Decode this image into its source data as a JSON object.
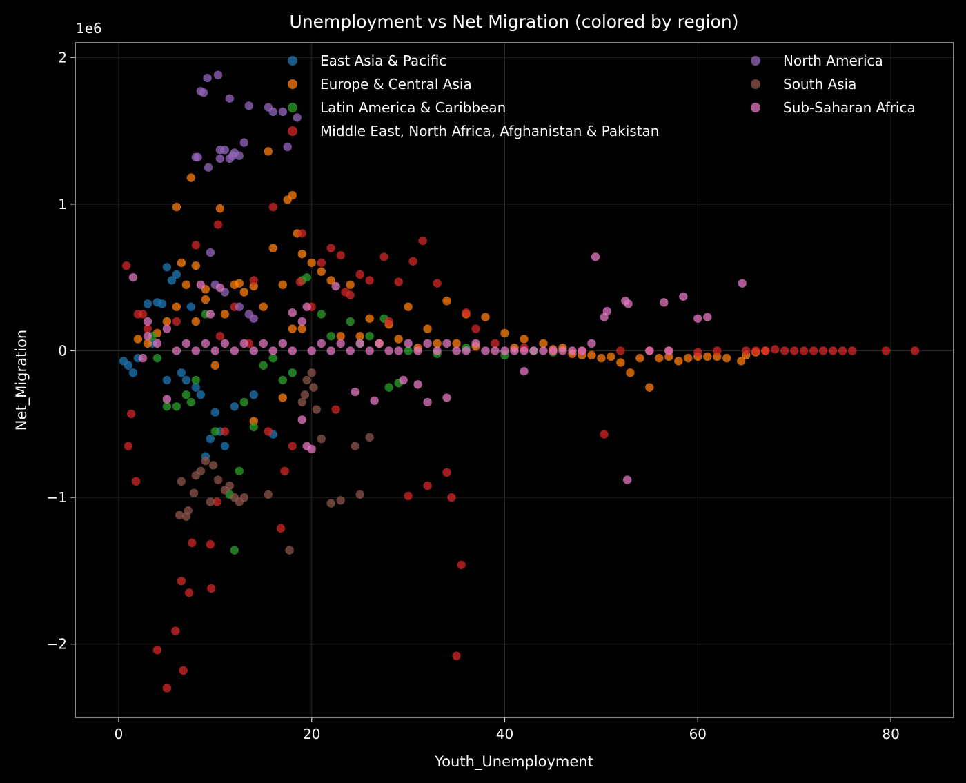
{
  "chart_data": {
    "type": "scatter",
    "title": "Unemployment vs Net Migration (colored by region)",
    "xlabel": "Youth_Unemployment",
    "ylabel": "Net_Migration",
    "y_scale_exponent_label": "1e6",
    "xlim": [
      -4.5,
      86.5
    ],
    "ylim": [
      -2.5,
      2.1
    ],
    "x_ticks": [
      0,
      20,
      40,
      60,
      80
    ],
    "x_tick_labels": [
      "0",
      "20",
      "40",
      "60",
      "80"
    ],
    "y_ticks": [
      -2,
      -1,
      0,
      1,
      2
    ],
    "y_tick_labels": [
      "−2",
      "−1",
      "0",
      "1",
      "2"
    ],
    "grid": true,
    "legend_location": "top",
    "series": [
      {
        "name": "East Asia & Pacific",
        "color": "#1f77b4",
        "x": [
          0.5,
          1,
          1.5,
          2,
          3,
          4,
          4.5,
          5,
          5.5,
          6,
          6.5,
          7,
          8,
          8.5,
          9,
          9.5,
          10,
          10.5,
          11,
          12,
          14,
          16,
          3.5,
          5,
          7.5
        ],
        "y": [
          -0.07,
          -0.1,
          -0.15,
          -0.05,
          0.32,
          0.33,
          0.32,
          0.57,
          0.48,
          0.52,
          -0.15,
          -0.2,
          -0.25,
          -0.3,
          -0.72,
          -0.6,
          -0.42,
          -0.55,
          -0.65,
          -0.38,
          -0.3,
          -0.57,
          0.05,
          -0.2,
          0.3
        ]
      },
      {
        "name": "Europe & Central Asia",
        "color": "#ff7f0e",
        "x": [
          6,
          6.5,
          7,
          7.5,
          8,
          9,
          10.5,
          12,
          12.5,
          14,
          15.5,
          16,
          17,
          17.5,
          18,
          18.5,
          19,
          20,
          21,
          22,
          24,
          26,
          28,
          30,
          32,
          34,
          36,
          38,
          40,
          42,
          44,
          46,
          48,
          50,
          52,
          53,
          55,
          56,
          58,
          60,
          61,
          63,
          64.5,
          65,
          6,
          8,
          10,
          14,
          17,
          19,
          23,
          35,
          2,
          4,
          3,
          5,
          9,
          11,
          13,
          15,
          18,
          25,
          27,
          29,
          31,
          33,
          37,
          41,
          45,
          47,
          49,
          51,
          54,
          57,
          59,
          62,
          66,
          67
        ],
        "y": [
          0.98,
          0.6,
          0.45,
          1.18,
          0.58,
          0.42,
          0.97,
          0.45,
          0.46,
          0.44,
          1.36,
          0.7,
          0.45,
          1.03,
          1.06,
          0.8,
          0.66,
          0.6,
          0.54,
          0.48,
          0.45,
          0.22,
          0.18,
          0.3,
          0.15,
          0.34,
          0.25,
          0.23,
          0.12,
          0.08,
          0.05,
          0.02,
          -0.03,
          -0.05,
          -0.08,
          -0.15,
          -0.25,
          -0.05,
          -0.07,
          -0.04,
          -0.04,
          -0.05,
          -0.07,
          -0.03,
          0.3,
          0.2,
          -0.1,
          -0.48,
          -0.32,
          0.15,
          0.1,
          0.05,
          0.08,
          0.12,
          0.05,
          0.2,
          0.35,
          0.25,
          0.4,
          0.3,
          0.15,
          0.1,
          0.05,
          0.08,
          0.02,
          0.05,
          0.03,
          0.02,
          0.01,
          -0.02,
          -0.03,
          -0.04,
          -0.05,
          -0.04,
          -0.05,
          -0.04,
          -0.01,
          0.0
        ]
      },
      {
        "name": "Latin America & Caribbean",
        "color": "#2ca02c",
        "x": [
          5,
          6,
          7,
          7.5,
          8,
          10,
          12,
          12.5,
          13,
          14,
          17,
          18,
          19,
          19.5,
          21,
          24,
          27.5,
          28,
          29,
          11.5,
          15,
          16,
          22,
          25,
          26,
          30,
          33,
          36,
          40,
          43,
          45,
          4,
          9,
          3.5
        ],
        "y": [
          -0.38,
          -0.38,
          -0.3,
          -0.35,
          -0.2,
          -0.55,
          -1.36,
          -0.82,
          -0.35,
          -0.52,
          -0.2,
          -0.15,
          0.48,
          0.5,
          0.25,
          0.2,
          0.22,
          -0.25,
          -0.22,
          -0.98,
          -0.1,
          -0.05,
          0.1,
          0.05,
          0.1,
          0.0,
          -0.02,
          0.02,
          -0.03,
          0.0,
          -0.01,
          -0.05,
          0.25,
          0.1
        ]
      },
      {
        "name": "Middle East, North Africa, Afghanistan & Pakistan",
        "color": "#d62728",
        "x": [
          0.8,
          1,
          1.3,
          1.8,
          2.5,
          4,
          5,
          5.9,
          6.5,
          6.7,
          7.3,
          7.6,
          9.5,
          9.6,
          10.2,
          10.3,
          11,
          15.5,
          16.8,
          17.2,
          18.8,
          19,
          22,
          23,
          25,
          27.5,
          29,
          30.5,
          32,
          34,
          35,
          35.5,
          36,
          50.3,
          55,
          60,
          65,
          68,
          70,
          72,
          74,
          76,
          79.5,
          82.5,
          31.5,
          33,
          22.5,
          16,
          14,
          12,
          8,
          6,
          3,
          2,
          20,
          24,
          26,
          28,
          37,
          39,
          42,
          45,
          48,
          52,
          57,
          62,
          66,
          67,
          69,
          71,
          73,
          75,
          10.5,
          13.5,
          18,
          21,
          23.5,
          30,
          34.5
        ],
        "y": [
          0.58,
          -0.65,
          -0.43,
          -0.89,
          0.25,
          -2.04,
          -2.3,
          -1.91,
          -1.57,
          -2.18,
          -1.65,
          -1.31,
          -1.32,
          -1.62,
          -1.03,
          0.86,
          -0.55,
          -0.55,
          -1.21,
          -0.82,
          0.47,
          0.8,
          0.7,
          0.65,
          0.52,
          0.64,
          0.47,
          0.61,
          -0.92,
          -0.83,
          -2.08,
          -1.46,
          0.26,
          -0.57,
          0.0,
          -0.01,
          0.0,
          0.01,
          0.0,
          0.0,
          0.0,
          0.0,
          0.0,
          0.0,
          0.75,
          0.46,
          -0.4,
          0.98,
          0.48,
          0.3,
          0.72,
          0.2,
          0.15,
          0.25,
          0.3,
          0.38,
          0.48,
          0.2,
          0.15,
          0.05,
          0.02,
          0.0,
          0.0,
          0.0,
          0.0,
          0.0,
          0.0,
          0.0,
          0.0,
          0.0,
          0.0,
          0.0,
          0.1,
          0.05,
          -0.65,
          0.6,
          0.4,
          -0.99,
          -1.0
        ]
      },
      {
        "name": "North America",
        "color": "#9467bd",
        "x": [
          8.5,
          8.8,
          9.2,
          10.3,
          11.5,
          13.5,
          15.5,
          16,
          17,
          18.5,
          8,
          8.2,
          9.3,
          10.5,
          11,
          11.8,
          12.5,
          10.5,
          11.5,
          12,
          13,
          17.5,
          9.5,
          10,
          11,
          12.5,
          13.5,
          14
        ],
        "y": [
          1.77,
          1.76,
          1.86,
          1.88,
          1.72,
          1.67,
          1.66,
          1.63,
          1.63,
          1.59,
          1.32,
          1.32,
          1.25,
          1.37,
          1.37,
          1.33,
          1.33,
          1.31,
          1.31,
          1.35,
          1.42,
          1.39,
          0.67,
          0.45,
          0.4,
          0.3,
          0.25,
          0.22
        ]
      },
      {
        "name": "South Asia",
        "color": "#8c564b",
        "x": [
          6.3,
          6.5,
          7,
          7.2,
          7.8,
          8,
          8.5,
          9,
          9.5,
          9.8,
          10.3,
          11,
          11.5,
          12,
          12.5,
          13,
          15.5,
          17.7,
          19,
          19.3,
          20.5,
          21,
          22,
          23,
          24.5,
          25,
          26,
          19.5,
          20,
          20.2
        ],
        "y": [
          -1.12,
          -0.89,
          -1.13,
          -1.09,
          -0.97,
          -0.85,
          -0.82,
          -0.75,
          -1.03,
          -0.78,
          -0.88,
          -0.95,
          -0.92,
          -1.0,
          -1.03,
          -1.0,
          -0.98,
          -1.36,
          -0.35,
          -0.3,
          -0.4,
          -0.6,
          -1.04,
          -1.02,
          -0.65,
          -0.98,
          -0.59,
          -0.2,
          -0.15,
          -0.25
        ]
      },
      {
        "name": "Sub-Saharan Africa",
        "color": "#e377c2",
        "x": [
          1.5,
          2.5,
          3,
          4,
          5,
          6,
          7,
          8,
          9,
          10,
          11,
          12,
          13,
          14,
          15,
          16,
          17,
          18,
          19,
          19.5,
          20,
          21,
          22,
          23,
          24,
          25,
          26,
          27,
          28,
          29,
          30,
          31,
          32,
          33,
          34,
          35,
          36,
          37,
          38,
          39,
          40,
          41,
          42,
          43,
          44,
          45,
          46,
          47,
          48,
          49,
          49.4,
          50.3,
          50.6,
          52.5,
          52.8,
          52.7,
          55,
          56.5,
          58.5,
          60,
          61,
          64.6,
          57,
          9.5,
          19.5,
          22.5,
          24.5,
          26.5,
          29.5,
          31,
          32,
          34,
          42,
          8.5,
          10.5,
          18,
          19,
          20,
          5,
          3
        ],
        "y": [
          0.5,
          -0.05,
          0.1,
          0.05,
          -0.33,
          0.0,
          0.05,
          0.0,
          0.05,
          0.0,
          0.05,
          0.0,
          0.05,
          0.0,
          0.05,
          0.0,
          0.05,
          0.0,
          0.2,
          -0.65,
          0.0,
          0.05,
          0.0,
          0.05,
          0.0,
          0.05,
          0.0,
          0.05,
          0.0,
          0.0,
          0.05,
          0.0,
          0.05,
          0.0,
          0.05,
          0.0,
          0.0,
          0.05,
          0.0,
          0.0,
          0.0,
          0.0,
          0.0,
          0.0,
          0.0,
          0.0,
          0.0,
          0.0,
          0.0,
          0.05,
          0.64,
          0.23,
          0.27,
          0.34,
          0.32,
          -0.88,
          0.0,
          0.33,
          0.37,
          0.22,
          0.23,
          0.46,
          0.0,
          0.25,
          0.3,
          0.44,
          -0.28,
          -0.34,
          -0.2,
          -0.23,
          -0.35,
          -0.32,
          -0.14,
          0.45,
          0.43,
          0.26,
          -0.47,
          -0.67,
          0.15,
          0.2
        ]
      }
    ]
  }
}
